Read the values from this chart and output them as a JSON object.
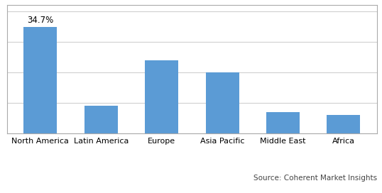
{
  "categories": [
    "North America",
    "Latin America",
    "Europe",
    "Asia Pacific",
    "Middle East",
    "Africa"
  ],
  "values": [
    34.7,
    9.0,
    24.0,
    20.0,
    7.0,
    6.0
  ],
  "bar_color": "#5b9bd5",
  "annotation_text": "34.7%",
  "annotation_index": 0,
  "source_text": "Source: Coherent Market Insights",
  "ylim": [
    0,
    42
  ],
  "background_color": "#ffffff",
  "grid_color": "#d0d0d0",
  "bar_width": 0.55,
  "tick_fontsize": 8,
  "annotation_fontsize": 8.5,
  "source_fontsize": 7.5,
  "border_color": "#aaaaaa"
}
